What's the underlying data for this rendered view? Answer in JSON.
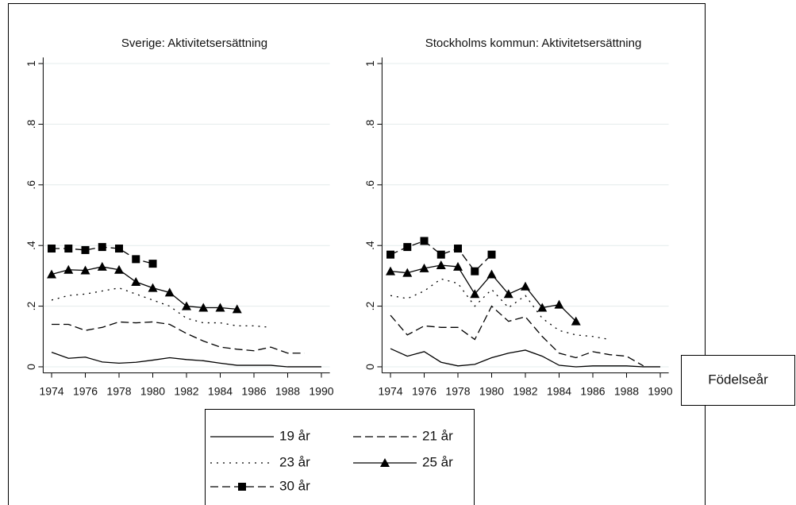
{
  "chart_data": [
    {
      "type": "line",
      "title": "Sverige: Aktivitetsersättning",
      "x": [
        1974,
        1975,
        1976,
        1977,
        1978,
        1979,
        1980,
        1981,
        1982,
        1983,
        1984,
        1985,
        1986,
        1987,
        1988,
        1989,
        1990
      ],
      "xlim": [
        1973.5,
        1990.5
      ],
      "xticks": [
        1974,
        1976,
        1978,
        1980,
        1982,
        1984,
        1986,
        1988,
        1990
      ],
      "ylim": [
        -0.02,
        1.02
      ],
      "yticks": [
        0,
        {
          "value": 0.2,
          "label": ".2"
        },
        {
          "value": 0.4,
          "label": ".4"
        },
        {
          "value": 0.6,
          "label": ".6"
        },
        {
          "value": 0.8,
          "label": ".8"
        },
        1
      ],
      "grid": true,
      "series": [
        {
          "name": "19 år",
          "color": "#000000",
          "dash": "none",
          "marker": "none",
          "values": [
            0.048,
            0.028,
            0.032,
            0.016,
            0.012,
            0.015,
            0.022,
            0.03,
            0.024,
            0.02,
            0.012,
            0.005,
            0.005,
            0.005,
            0.0,
            0.0,
            0.0
          ]
        },
        {
          "name": "21 år",
          "color": "#000000",
          "dash": "10,5",
          "marker": "none",
          "values": [
            0.14,
            0.14,
            0.12,
            0.13,
            0.148,
            0.145,
            0.148,
            0.14,
            0.11,
            0.085,
            0.065,
            0.058,
            0.053,
            0.065,
            0.045,
            0.045,
            null
          ]
        },
        {
          "name": "23 år",
          "color": "#000000",
          "dash": "2,6",
          "marker": "none",
          "values": [
            0.22,
            0.235,
            0.24,
            0.25,
            0.26,
            0.24,
            0.22,
            0.2,
            0.16,
            0.145,
            0.145,
            0.135,
            0.135,
            0.13,
            null,
            null,
            null
          ]
        },
        {
          "name": "25 år",
          "color": "#000000",
          "dash": "none",
          "marker": "triangle",
          "values": [
            0.305,
            0.32,
            0.318,
            0.33,
            0.32,
            0.28,
            0.26,
            0.245,
            0.2,
            0.195,
            0.195,
            0.19,
            null,
            null,
            null,
            null,
            null
          ]
        },
        {
          "name": "30 år",
          "color": "#000000",
          "dash": "10,5",
          "marker": "square",
          "values": [
            0.39,
            0.39,
            0.385,
            0.395,
            0.39,
            0.355,
            0.34,
            null,
            null,
            null,
            null,
            null,
            null,
            null,
            null,
            null,
            null
          ]
        }
      ]
    },
    {
      "type": "line",
      "title": "Stockholms kommun: Aktivitetsersättning",
      "x": [
        1974,
        1975,
        1976,
        1977,
        1978,
        1979,
        1980,
        1981,
        1982,
        1983,
        1984,
        1985,
        1986,
        1987,
        1988,
        1989,
        1990
      ],
      "xlim": [
        1973.5,
        1990.5
      ],
      "xticks": [
        1974,
        1976,
        1978,
        1980,
        1982,
        1984,
        1986,
        1988,
        1990
      ],
      "ylim": [
        -0.02,
        1.02
      ],
      "yticks": [
        0,
        {
          "value": 0.2,
          "label": ".2"
        },
        {
          "value": 0.4,
          "label": ".4"
        },
        {
          "value": 0.6,
          "label": ".6"
        },
        {
          "value": 0.8,
          "label": ".8"
        },
        1
      ],
      "grid": true,
      "series": [
        {
          "color": "#000000",
          "dash": "none",
          "marker": "none",
          "values": [
            0.06,
            0.035,
            0.05,
            0.015,
            0.003,
            0.008,
            0.03,
            0.045,
            0.055,
            0.035,
            0.005,
            0.0,
            0.003,
            0.003,
            0.003,
            0.0,
            0.0
          ]
        },
        {
          "color": "#000000",
          "dash": "10,5",
          "marker": "none",
          "values": [
            0.17,
            0.105,
            0.135,
            0.13,
            0.13,
            0.09,
            0.2,
            0.15,
            0.165,
            0.1,
            0.045,
            0.03,
            0.05,
            0.04,
            0.035,
            0.003,
            null
          ]
        },
        {
          "color": "#000000",
          "dash": "2,6",
          "marker": "none",
          "values": [
            0.235,
            0.225,
            0.25,
            0.29,
            0.275,
            0.2,
            0.255,
            0.195,
            0.235,
            0.16,
            0.12,
            0.105,
            0.1,
            0.09,
            null,
            null,
            null
          ]
        },
        {
          "color": "#000000",
          "dash": "none",
          "marker": "triangle",
          "values": [
            0.315,
            0.31,
            0.325,
            0.335,
            0.33,
            0.24,
            0.305,
            0.24,
            0.265,
            0.195,
            0.205,
            0.15,
            null,
            null,
            null,
            null,
            null
          ]
        },
        {
          "color": "#000000",
          "dash": "10,5",
          "marker": "square",
          "values": [
            0.37,
            0.395,
            0.415,
            0.37,
            0.39,
            0.315,
            0.37,
            null,
            null,
            null,
            null,
            null,
            null,
            null,
            null,
            null,
            null
          ]
        }
      ]
    }
  ],
  "x_axis_title": "Födelseår"
}
